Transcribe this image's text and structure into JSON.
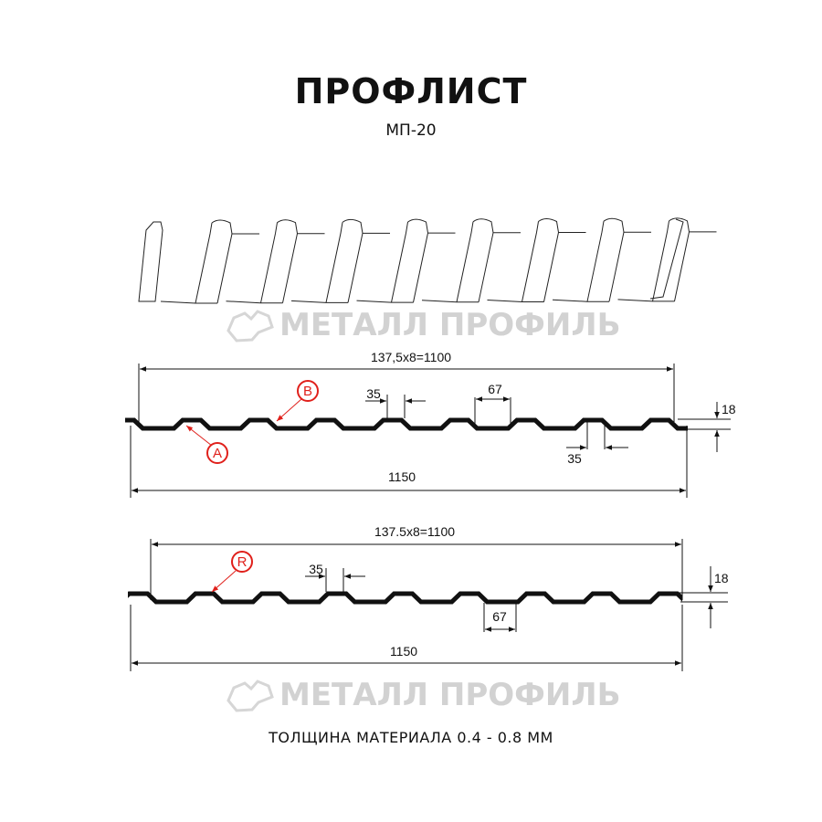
{
  "header": {
    "title": "ПРОФЛИСТ",
    "subtitle": "МП-20"
  },
  "watermark": {
    "text": "МЕТАЛЛ ПРОФИЛЬ",
    "color": "#d2d2d2"
  },
  "profile_a": {
    "pitch_label": "137,5x8=1100",
    "crest_label": "35",
    "valley_label": "67",
    "bottom_label": "35",
    "height_label": "18",
    "width_label": "1150",
    "marker_a": "A",
    "marker_b": "B"
  },
  "profile_r": {
    "pitch_label": "137.5x8=1100",
    "crest_label": "35",
    "valley_label": "67",
    "height_label": "18",
    "width_label": "1150",
    "marker_r": "R"
  },
  "colors": {
    "profile": "#111111",
    "marker": "#e0201b",
    "watermark": "#d2d2d2"
  },
  "footer": {
    "text": "ТОЛЩИНА МАТЕРИАЛА 0.4 - 0.8 ММ"
  }
}
